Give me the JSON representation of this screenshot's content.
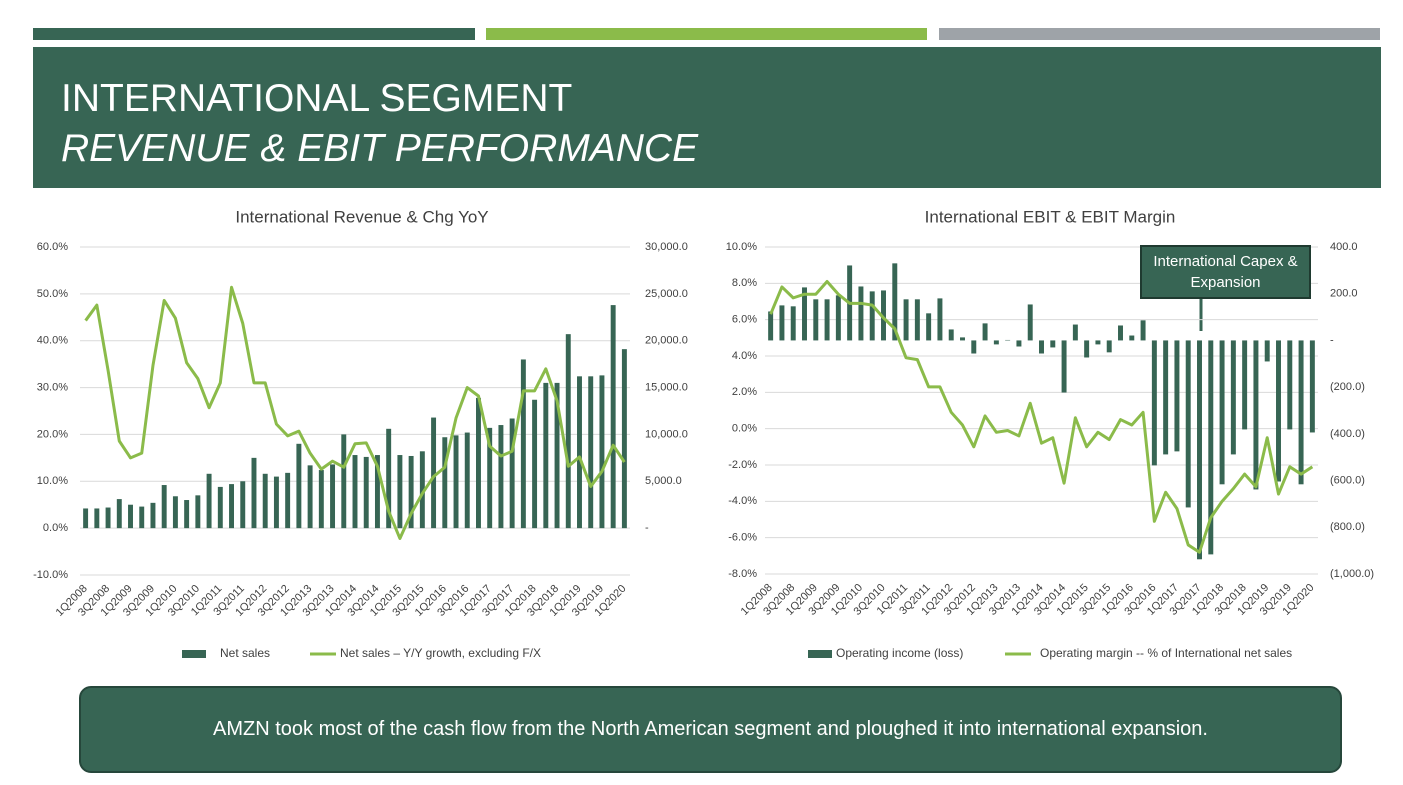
{
  "header": {
    "title": "INTERNATIONAL SEGMENT",
    "subtitle": "REVENUE & EBIT PERFORMANCE"
  },
  "chart_data": [
    {
      "type": "combo",
      "title": "International Revenue & Chg YoY",
      "categories": [
        "1Q2008",
        null,
        "3Q2008",
        null,
        "1Q2009",
        null,
        "3Q2009",
        null,
        "1Q2010",
        null,
        "3Q2010",
        null,
        "1Q2011",
        null,
        "3Q2011",
        null,
        "1Q2012",
        null,
        "3Q2012",
        null,
        "1Q2013",
        null,
        "3Q2013",
        null,
        "1Q2014",
        null,
        "3Q2014",
        null,
        "1Q2015",
        null,
        "3Q2015",
        null,
        "1Q2016",
        null,
        "3Q2016",
        null,
        "1Q2017",
        null,
        "3Q2017",
        null,
        "1Q2018",
        null,
        "3Q2018",
        null,
        "1Q2019",
        null,
        "3Q2019",
        null,
        "1Q2020"
      ],
      "series": [
        {
          "name": "Net sales",
          "type": "bar",
          "axis": "y2",
          "color": "#376554",
          "values": [
            2100,
            2100,
            2200,
            3100,
            2500,
            2300,
            2700,
            4600,
            3400,
            3000,
            3500,
            5800,
            4400,
            4700,
            5000,
            7500,
            5800,
            5500,
            5900,
            9000,
            6700,
            6200,
            6800,
            10000,
            7800,
            7600,
            7800,
            10600,
            7800,
            7700,
            8200,
            11800,
            9700,
            9900,
            10200,
            13900,
            10700,
            11000,
            11700,
            18000,
            13700,
            15500,
            15500,
            20700,
            16200,
            16200,
            16300,
            23800,
            19100
          ]
        },
        {
          "name": "Net sales – Y/Y growth, excluding F/X",
          "type": "line",
          "color": "#8bbb4a",
          "values": [
            44.3,
            47.6,
            33.7,
            18.6,
            15,
            16,
            34.7,
            48.6,
            44.8,
            35.3,
            31.9,
            25.7,
            31,
            51.4,
            43.7,
            31,
            31,
            22.2,
            19.7,
            20.7,
            16,
            12.6,
            14.3,
            13,
            18,
            18.2,
            13.2,
            3.6,
            -2.2,
            3.1,
            7.4,
            11,
            13,
            23.5,
            30,
            28.2,
            17.5,
            15.4,
            16.4,
            29.3,
            29.3,
            34,
            27.2,
            13.2,
            15.2,
            8.9,
            12.1,
            17.7,
            14.1
          ]
        }
      ],
      "ylim": [
        -10,
        60
      ],
      "yticks": [
        {
          "value": -10,
          "label": "-10.0%"
        },
        {
          "value": 0,
          "label": "0.0%"
        },
        {
          "value": 10,
          "label": "10.0%"
        },
        {
          "value": 20,
          "label": "20.0%"
        },
        {
          "value": 30,
          "label": "30.0%"
        },
        {
          "value": 40,
          "label": "40.0%"
        },
        {
          "value": 50,
          "label": "50.0%"
        },
        {
          "value": 60,
          "label": "60.0%"
        }
      ],
      "y2lim": [
        -5000,
        30000
      ],
      "y2ticks": [
        {
          "value": 0,
          "label": "-"
        },
        {
          "value": 5000,
          "label": "5,000.0"
        },
        {
          "value": 10000,
          "label": "10,000.0"
        },
        {
          "value": 15000,
          "label": "15,000.0"
        },
        {
          "value": 20000,
          "label": "20,000.0"
        },
        {
          "value": 25000,
          "label": "25,000.0"
        },
        {
          "value": 30000,
          "label": "30,000.0"
        }
      ],
      "grid": true,
      "legend": "bottom"
    },
    {
      "type": "combo",
      "title": "International EBIT & EBIT Margin",
      "categories": [
        "1Q2008",
        null,
        "3Q2008",
        null,
        "1Q2009",
        null,
        "3Q2009",
        null,
        "1Q2010",
        null,
        "3Q2010",
        null,
        "1Q2011",
        null,
        "3Q2011",
        null,
        "1Q2012",
        null,
        "3Q2012",
        null,
        "1Q2013",
        null,
        "3Q2013",
        null,
        "1Q2014",
        null,
        "3Q2014",
        null,
        "1Q2015",
        null,
        "3Q2015",
        null,
        "1Q2016",
        null,
        "3Q2016",
        null,
        "1Q2017",
        null,
        "3Q2017",
        null,
        "1Q2018",
        null,
        "3Q2018",
        null,
        "1Q2019",
        null,
        "3Q2019",
        null,
        "1Q2020"
      ],
      "series": [
        {
          "name": "Operating income (loss)",
          "type": "bar",
          "axis": "y2",
          "color": "#376554",
          "values": [
            124,
            150,
            146,
            227,
            176,
            176,
            193,
            321,
            231,
            210,
            214,
            330,
            176,
            176,
            116,
            180,
            47,
            13,
            -56,
            73,
            -17,
            2,
            -26,
            154,
            -56,
            -30,
            -223,
            68,
            -73,
            -17,
            -51,
            64,
            21,
            86,
            -535,
            -488,
            -475,
            -715,
            -937,
            -916,
            -616,
            -488,
            -381,
            -638,
            -90,
            -604,
            -381,
            -616,
            -394
          ]
        },
        {
          "name": "Operating margin -- % of International net sales",
          "type": "line",
          "color": "#8bbb4a",
          "values": [
            6.3,
            7.8,
            7.2,
            7.4,
            7.4,
            8.1,
            7.4,
            6.9,
            6.9,
            6.8,
            6.1,
            5.5,
            3.9,
            3.8,
            2.3,
            2.3,
            0.9,
            0.2,
            -1.0,
            0.7,
            -0.2,
            -0.1,
            -0.4,
            1.4,
            -0.8,
            -0.5,
            -3.0,
            0.6,
            -1.0,
            -0.2,
            -0.6,
            0.5,
            0.2,
            0.9,
            -5.1,
            -3.5,
            -4.4,
            -6.4,
            -6.8,
            -4.9,
            -4.0,
            -3.3,
            -2.5,
            -3.2,
            -0.5,
            -3.6,
            -2.1,
            -2.5,
            -2.1
          ]
        }
      ],
      "ylim": [
        -8,
        10
      ],
      "yticks": [
        {
          "value": -8,
          "label": "-8.0%"
        },
        {
          "value": -6,
          "label": "-6.0%"
        },
        {
          "value": -4,
          "label": "-4.0%"
        },
        {
          "value": -2,
          "label": "-2.0%"
        },
        {
          "value": 0,
          "label": "0.0%"
        },
        {
          "value": 2,
          "label": "2.0%"
        },
        {
          "value": 4,
          "label": "4.0%"
        },
        {
          "value": 6,
          "label": "6.0%"
        },
        {
          "value": 8,
          "label": "8.0%"
        },
        {
          "value": 10,
          "label": "10.0%"
        }
      ],
      "y2lim": [
        -1000,
        400
      ],
      "y2ticks": [
        {
          "value": -1000,
          "label": "(1,000.0)"
        },
        {
          "value": -800,
          "label": "(800.0)"
        },
        {
          "value": -600,
          "label": "(600.0)"
        },
        {
          "value": -400,
          "label": "(400.0)"
        },
        {
          "value": -200,
          "label": "(200.0)"
        },
        {
          "value": 0,
          "label": "-"
        },
        {
          "value": 200,
          "label": "200.0"
        },
        {
          "value": 400,
          "label": "400.0"
        }
      ],
      "grid": true,
      "legend": "bottom",
      "annotation": "International Capex & Expansion"
    }
  ],
  "footer": "AMZN took most of the cash flow from the North American segment and ploughed it into international expansion."
}
